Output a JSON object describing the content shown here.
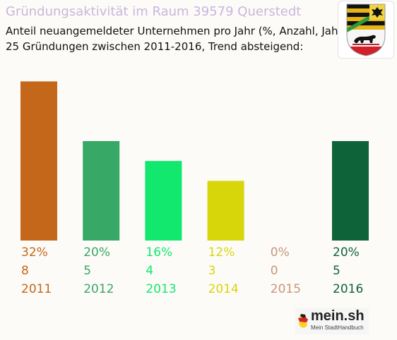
{
  "title": "Gründungsaktivität im Raum 39579 Querstedt",
  "subtitle_line1": "Anteil neuangemeldeter Unternehmen pro Jahr (%, Anzahl, Jahr)",
  "subtitle_line2": "25 Gründungen zwischen 2011-2016, Trend absteigend:",
  "logo": {
    "name": "mein.sh",
    "tagline": "Mein StadtHandbuch"
  },
  "crest_icon": "saxony-anhalt-coat-of-arms-icon",
  "chart_data": {
    "type": "bar",
    "categories": [
      "2011",
      "2012",
      "2013",
      "2014",
      "2015",
      "2016"
    ],
    "values": [
      32,
      20,
      16,
      12,
      0,
      20
    ],
    "percent_labels": [
      "32%",
      "20%",
      "16%",
      "12%",
      "0%",
      "20%"
    ],
    "counts": [
      "8",
      "5",
      "4",
      "3",
      "0",
      "5"
    ],
    "colors": [
      "#c4671b",
      "#37a865",
      "#12e86d",
      "#d7d60b",
      "#c8967a",
      "#0e6338"
    ],
    "unit": "%"
  }
}
